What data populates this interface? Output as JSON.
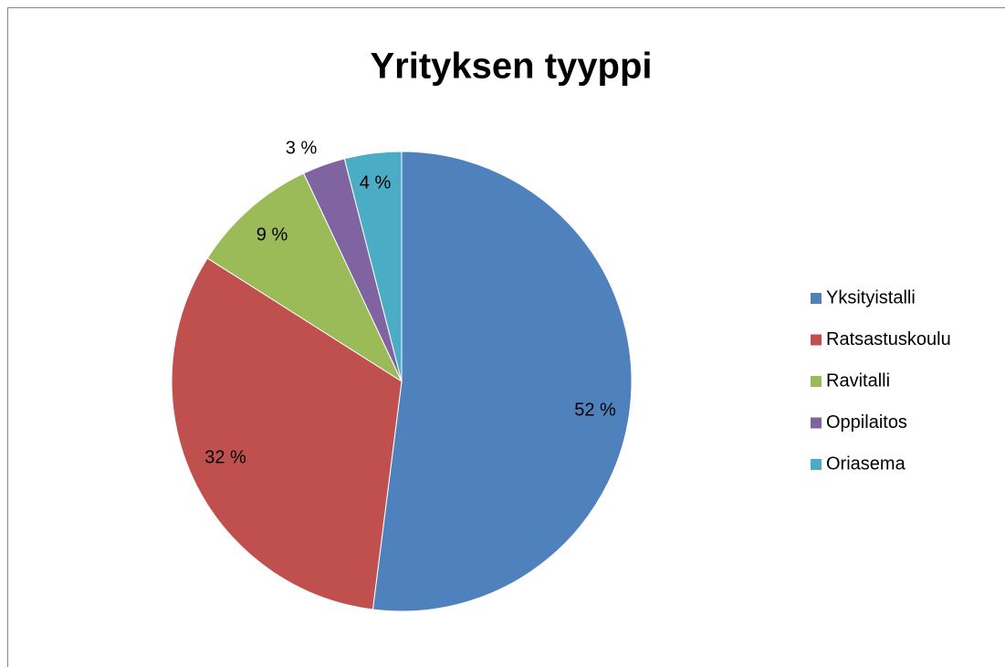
{
  "chart_data": {
    "type": "pie",
    "title": "Yrityksen tyyppi",
    "categories": [
      "Yksityistalli",
      "Ratsastuskoulu",
      "Ravitalli",
      "Oppilaitos",
      "Oriasema"
    ],
    "values": [
      52,
      32,
      9,
      3,
      4
    ],
    "value_labels": [
      "52 %",
      "32 %",
      "9 %",
      "3 %",
      "4 %"
    ],
    "colors": [
      "#4f81bd",
      "#c0504d",
      "#9bbb59",
      "#8064a2",
      "#4bacc6"
    ],
    "legend": "right"
  }
}
